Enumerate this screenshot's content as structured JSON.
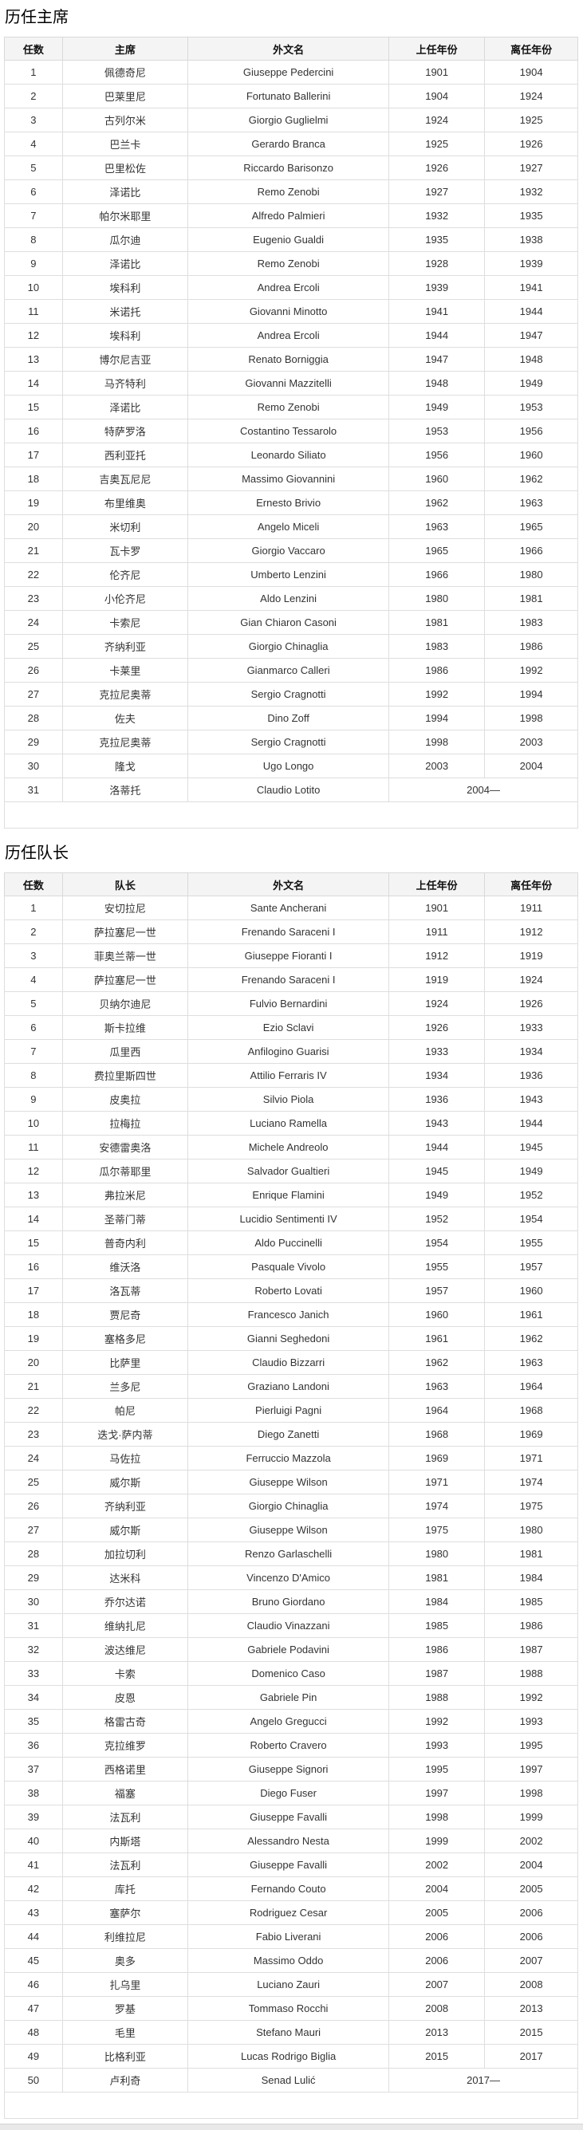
{
  "colors": {
    "header_bg": "#f4f4f4",
    "border": "#dedede",
    "body_text": "#333333",
    "title_text": "#000000"
  },
  "sections": [
    {
      "title": "历任主席",
      "columns": [
        "任数",
        "主席",
        "外文名",
        "上任年份",
        "离任年份"
      ],
      "rows": [
        [
          "1",
          "佩德奇尼",
          "Giuseppe Pedercini",
          "1901",
          "1904"
        ],
        [
          "2",
          "巴莱里尼",
          "Fortunato Ballerini",
          "1904",
          "1924"
        ],
        [
          "3",
          "古列尔米",
          "Giorgio Guglielmi",
          "1924",
          "1925"
        ],
        [
          "4",
          "巴兰卡",
          "Gerardo Branca",
          "1925",
          "1926"
        ],
        [
          "5",
          "巴里松佐",
          "Riccardo Barisonzo",
          "1926",
          "1927"
        ],
        [
          "6",
          "泽诺比",
          "Remo Zenobi",
          "1927",
          "1932"
        ],
        [
          "7",
          "帕尔米耶里",
          "Alfredo Palmieri",
          "1932",
          "1935"
        ],
        [
          "8",
          "瓜尔迪",
          "Eugenio Gualdi",
          "1935",
          "1938"
        ],
        [
          "9",
          "泽诺比",
          "Remo Zenobi",
          "1928",
          "1939"
        ],
        [
          "10",
          "埃科利",
          "Andrea Ercoli",
          "1939",
          "1941"
        ],
        [
          "11",
          "米诺托",
          "Giovanni Minotto",
          "1941",
          "1944"
        ],
        [
          "12",
          "埃科利",
          "Andrea Ercoli",
          "1944",
          "1947"
        ],
        [
          "13",
          "博尔尼吉亚",
          "Renato Borniggia",
          "1947",
          "1948"
        ],
        [
          "14",
          "马齐特利",
          "Giovanni Mazzitelli",
          "1948",
          "1949"
        ],
        [
          "15",
          "泽诺比",
          "Remo Zenobi",
          "1949",
          "1953"
        ],
        [
          "16",
          "特萨罗洛",
          "Costantino Tessarolo",
          "1953",
          "1956"
        ],
        [
          "17",
          "西利亚托",
          "Leonardo Siliato",
          "1956",
          "1960"
        ],
        [
          "18",
          "吉奥瓦尼尼",
          "Massimo Giovannini",
          "1960",
          "1962"
        ],
        [
          "19",
          "布里维奥",
          "Ernesto Brivio",
          "1962",
          "1963"
        ],
        [
          "20",
          "米切利",
          "Angelo Miceli",
          "1963",
          "1965"
        ],
        [
          "21",
          "瓦卡罗",
          "Giorgio Vaccaro",
          "1965",
          "1966"
        ],
        [
          "22",
          "伦齐尼",
          "Umberto Lenzini",
          "1966",
          "1980"
        ],
        [
          "23",
          "小伦齐尼",
          "Aldo Lenzini",
          "1980",
          "1981"
        ],
        [
          "24",
          "卡索尼",
          "Gian Chiaron Casoni",
          "1981",
          "1983"
        ],
        [
          "25",
          "齐纳利亚",
          "Giorgio Chinaglia",
          "1983",
          "1986"
        ],
        [
          "26",
          "卡莱里",
          "Gianmarco Calleri",
          "1986",
          "1992"
        ],
        [
          "27",
          "克拉尼奥蒂",
          "Sergio Cragnotti",
          "1992",
          "1994"
        ],
        [
          "28",
          "佐夫",
          "Dino Zoff",
          "1994",
          "1998"
        ],
        [
          "29",
          "克拉尼奥蒂",
          "Sergio Cragnotti",
          "1998",
          "2003"
        ],
        [
          "30",
          "隆戈",
          "Ugo Longo",
          "2003",
          "2004"
        ],
        [
          "31",
          "洛蒂托",
          "Claudio Lotito",
          "2004—",
          ""
        ]
      ]
    },
    {
      "title": "历任队长",
      "columns": [
        "任数",
        "队长",
        "外文名",
        "上任年份",
        "离任年份"
      ],
      "rows": [
        [
          "1",
          "安切拉尼",
          "Sante Ancherani",
          "1901",
          "1911"
        ],
        [
          "2",
          "萨拉塞尼一世",
          "Frenando Saraceni I",
          "1911",
          "1912"
        ],
        [
          "3",
          "菲奥兰蒂一世",
          "Giuseppe Fioranti I",
          "1912",
          "1919"
        ],
        [
          "4",
          "萨拉塞尼一世",
          "Frenando Saraceni I",
          "1919",
          "1924"
        ],
        [
          "5",
          "贝纳尔迪尼",
          "Fulvio Bernardini",
          "1924",
          "1926"
        ],
        [
          "6",
          "斯卡拉维",
          "Ezio Sclavi",
          "1926",
          "1933"
        ],
        [
          "7",
          "瓜里西",
          "Anfilogino Guarisi",
          "1933",
          "1934"
        ],
        [
          "8",
          "费拉里斯四世",
          "Attilio Ferraris IV",
          "1934",
          "1936"
        ],
        [
          "9",
          "皮奥拉",
          "Silvio Piola",
          "1936",
          "1943"
        ],
        [
          "10",
          "拉梅拉",
          "Luciano Ramella",
          "1943",
          "1944"
        ],
        [
          "11",
          "安德雷奥洛",
          "Michele Andreolo",
          "1944",
          "1945"
        ],
        [
          "12",
          "瓜尔蒂耶里",
          "Salvador Gualtieri",
          "1945",
          "1949"
        ],
        [
          "13",
          "弗拉米尼",
          "Enrique Flamini",
          "1949",
          "1952"
        ],
        [
          "14",
          "圣蒂门蒂",
          "Lucidio Sentimenti IV",
          "1952",
          "1954"
        ],
        [
          "15",
          "普奇内利",
          "Aldo Puccinelli",
          "1954",
          "1955"
        ],
        [
          "16",
          "维沃洛",
          "Pasquale Vivolo",
          "1955",
          "1957"
        ],
        [
          "17",
          "洛瓦蒂",
          "Roberto Lovati",
          "1957",
          "1960"
        ],
        [
          "18",
          "贾尼奇",
          "Francesco Janich",
          "1960",
          "1961"
        ],
        [
          "19",
          "塞格多尼",
          "Gianni Seghedoni",
          "1961",
          "1962"
        ],
        [
          "20",
          "比萨里",
          "Claudio Bizzarri",
          "1962",
          "1963"
        ],
        [
          "21",
          "兰多尼",
          "Graziano Landoni",
          "1963",
          "1964"
        ],
        [
          "22",
          "帕尼",
          "Pierluigi Pagni",
          "1964",
          "1968"
        ],
        [
          "23",
          "迭戈·萨内蒂",
          "Diego Zanetti",
          "1968",
          "1969"
        ],
        [
          "24",
          "马佐拉",
          "Ferruccio Mazzola",
          "1969",
          "1971"
        ],
        [
          "25",
          "威尔斯",
          "Giuseppe Wilson",
          "1971",
          "1974"
        ],
        [
          "26",
          "齐纳利亚",
          "Giorgio Chinaglia",
          "1974",
          "1975"
        ],
        [
          "27",
          "威尔斯",
          "Giuseppe Wilson",
          "1975",
          "1980"
        ],
        [
          "28",
          "加拉切利",
          "Renzo Garlaschelli",
          "1980",
          "1981"
        ],
        [
          "29",
          "达米科",
          "Vincenzo D'Amico",
          "1981",
          "1984"
        ],
        [
          "30",
          "乔尔达诺",
          "Bruno Giordano",
          "1984",
          "1985"
        ],
        [
          "31",
          "维纳扎尼",
          "Claudio Vinazzani",
          "1985",
          "1986"
        ],
        [
          "32",
          "波达维尼",
          "Gabriele Podavini",
          "1986",
          "1987"
        ],
        [
          "33",
          "卡索",
          "Domenico Caso",
          "1987",
          "1988"
        ],
        [
          "34",
          "皮恩",
          "Gabriele Pin",
          "1988",
          "1992"
        ],
        [
          "35",
          "格雷古奇",
          "Angelo Gregucci",
          "1992",
          "1993"
        ],
        [
          "36",
          "克拉维罗",
          "Roberto Cravero",
          "1993",
          "1995"
        ],
        [
          "37",
          "西格诺里",
          "Giuseppe Signori",
          "1995",
          "1997"
        ],
        [
          "38",
          "福塞",
          "Diego Fuser",
          "1997",
          "1998"
        ],
        [
          "39",
          "法瓦利",
          "Giuseppe Favalli",
          "1998",
          "1999"
        ],
        [
          "40",
          "内斯塔",
          "Alessandro Nesta",
          "1999",
          "2002"
        ],
        [
          "41",
          "法瓦利",
          "Giuseppe Favalli",
          "2002",
          "2004"
        ],
        [
          "42",
          "库托",
          "Fernando Couto",
          "2004",
          "2005"
        ],
        [
          "43",
          "塞萨尔",
          "Rodriguez Cesar",
          "2005",
          "2006"
        ],
        [
          "44",
          "利维拉尼",
          "Fabio Liverani",
          "2006",
          "2006"
        ],
        [
          "45",
          "奥多",
          "Massimo Oddo",
          "2006",
          "2007"
        ],
        [
          "46",
          "扎乌里",
          "Luciano Zauri",
          "2007",
          "2008"
        ],
        [
          "47",
          "罗基",
          "Tommaso Rocchi",
          "2008",
          "2013"
        ],
        [
          "48",
          "毛里",
          "Stefano Mauri",
          "2013",
          "2015"
        ],
        [
          "49",
          "比格利亚",
          "Lucas Rodrigo Biglia",
          "2015",
          "2017"
        ],
        [
          "50",
          "卢利奇",
          "Senad Lulić",
          "2017—",
          ""
        ]
      ]
    }
  ]
}
